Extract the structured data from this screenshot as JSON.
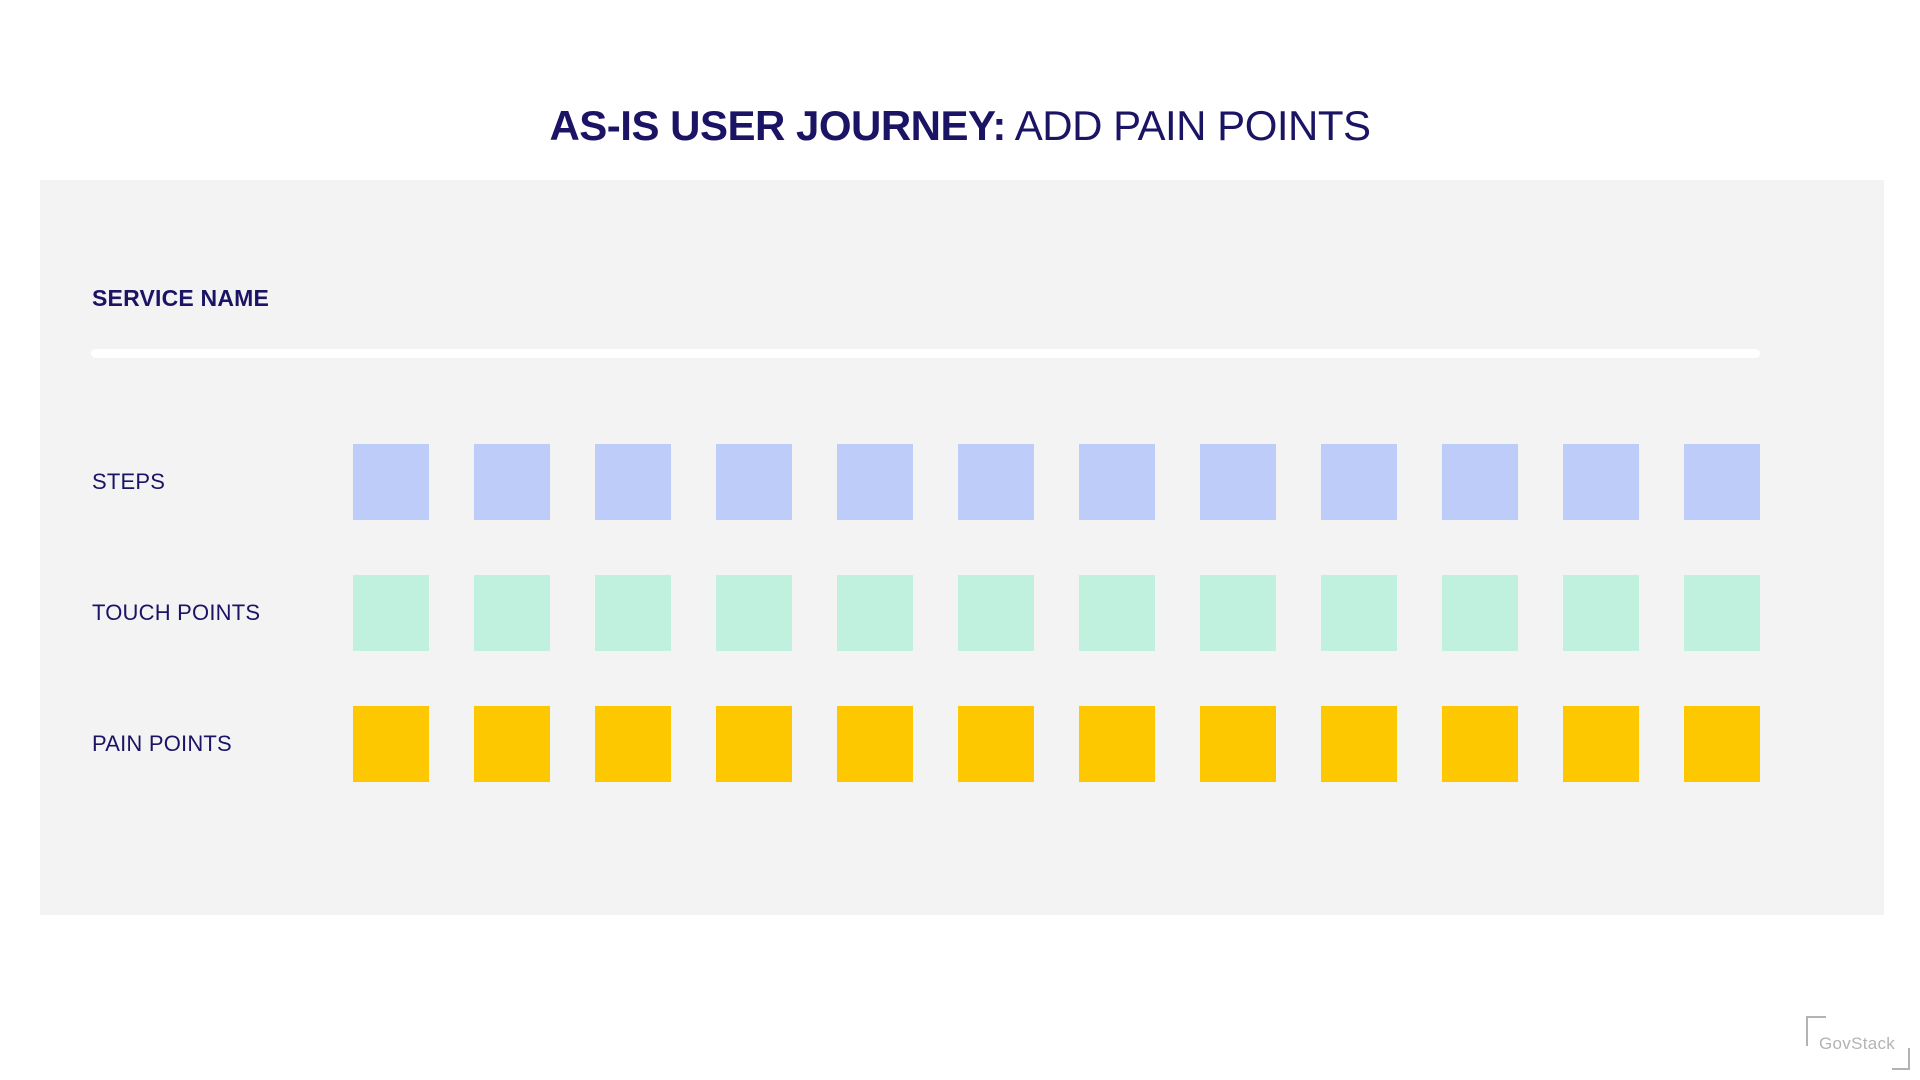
{
  "title": {
    "bold": "AS-IS USER JOURNEY:",
    "regular": " ADD PAIN POINTS",
    "color": "#1b1464"
  },
  "panel": {
    "background": "#f3f3f4"
  },
  "journey": {
    "service_label": "SERVICE NAME",
    "rows": [
      {
        "id": "steps",
        "label": "STEPS",
        "color": "#bdccf8",
        "count": 12
      },
      {
        "id": "touch-points",
        "label": "TOUCH POINTS",
        "color": "#c0f0de",
        "count": 12
      },
      {
        "id": "pain-points",
        "label": "PAIN POINTS",
        "color": "#fdc800",
        "count": 12
      }
    ]
  },
  "footer": {
    "logo_text": "GovStack",
    "logo_color": "#b3b3b3"
  }
}
